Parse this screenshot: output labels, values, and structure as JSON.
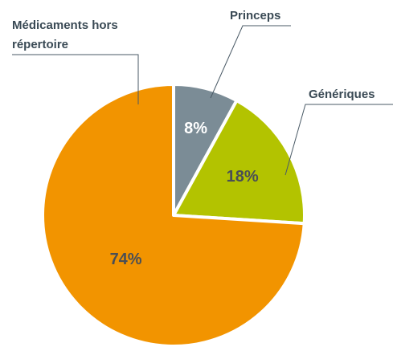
{
  "chart_data": {
    "type": "pie",
    "categories": [
      "Princeps",
      "Génériques",
      "Médicaments hors répertoire"
    ],
    "values": [
      8,
      18,
      74
    ],
    "value_labels": [
      "8%",
      "18%",
      "74%"
    ],
    "colors": [
      "#7b8c96",
      "#b3c300",
      "#f29400"
    ],
    "label_colors": [
      "#ffffff",
      "#4a4f55",
      "#4a4f55"
    ]
  }
}
